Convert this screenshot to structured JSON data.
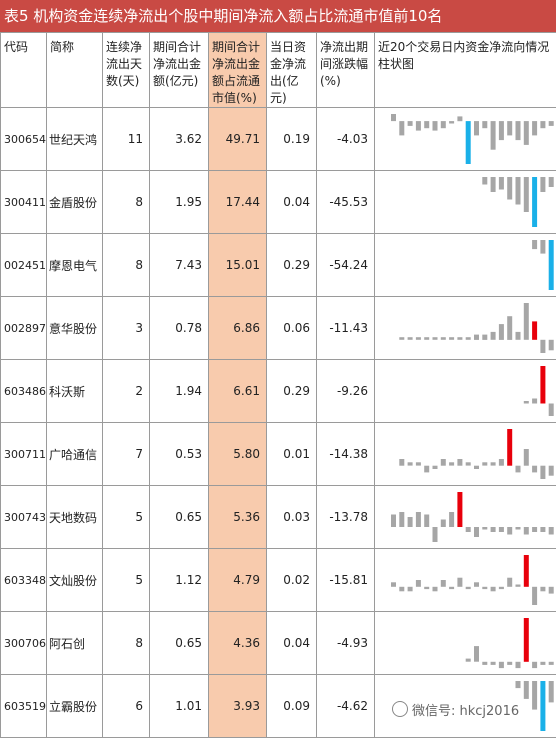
{
  "title": "表5  机构资金连续净流出个股中期间净流入额占比流通市值前10名",
  "headers": [
    "代码",
    "简称",
    "连续净流出天数(天)",
    "期间合计净流出金额(亿元)",
    "期间合计净流出金额占流通市值(%)",
    "当日资金净流出(亿元)",
    "净流出期间涨跌幅(%)",
    "近20个交易日内资金净流向情况柱状图"
  ],
  "rows": [
    {
      "code": "300654",
      "name": "世纪天鸿",
      "days": "11",
      "amount": "3.62",
      "ratio": "49.71",
      "today": "0.19",
      "change": "-4.03"
    },
    {
      "code": "300411",
      "name": "金盾股份",
      "days": "8",
      "amount": "1.95",
      "ratio": "17.44",
      "today": "0.04",
      "change": "-45.53"
    },
    {
      "code": "002451",
      "name": "摩恩电气",
      "days": "8",
      "amount": "7.43",
      "ratio": "15.01",
      "today": "0.29",
      "change": "-54.24"
    },
    {
      "code": "002897",
      "name": "意华股份",
      "days": "3",
      "amount": "0.78",
      "ratio": "6.86",
      "today": "0.06",
      "change": "-11.43"
    },
    {
      "code": "603486",
      "name": "科沃斯",
      "days": "2",
      "amount": "1.94",
      "ratio": "6.61",
      "today": "0.29",
      "change": "-9.26"
    },
    {
      "code": "300711",
      "name": "广哈通信",
      "days": "7",
      "amount": "0.53",
      "ratio": "5.80",
      "today": "0.01",
      "change": "-14.38"
    },
    {
      "code": "300743",
      "name": "天地数码",
      "days": "5",
      "amount": "0.65",
      "ratio": "5.36",
      "today": "0.03",
      "change": "-13.78"
    },
    {
      "code": "603348",
      "name": "文灿股份",
      "days": "5",
      "amount": "1.12",
      "ratio": "4.79",
      "today": "0.02",
      "change": "-15.81"
    },
    {
      "code": "300706",
      "name": "阿石创",
      "days": "8",
      "amount": "0.65",
      "ratio": "4.36",
      "today": "0.04",
      "change": "-4.93"
    },
    {
      "code": "603519",
      "name": "立霸股份",
      "days": "6",
      "amount": "1.01",
      "ratio": "3.93",
      "today": "0.09",
      "change": "-4.62"
    }
  ],
  "sparks": [
    [
      3,
      -6,
      -2,
      -4,
      -3,
      -4,
      -3,
      -1,
      2,
      -18,
      -6,
      -3,
      -12,
      -8,
      -6,
      -8,
      -10,
      -6,
      -3,
      -2
    ],
    [
      0,
      0,
      0,
      0,
      0,
      0,
      0,
      0,
      0,
      0,
      0,
      -3,
      -6,
      -5,
      -9,
      -11,
      -14,
      -20,
      -6,
      -4
    ],
    [
      0,
      0,
      0,
      0,
      0,
      0,
      0,
      0,
      0,
      0,
      0,
      0,
      0,
      0,
      0,
      0,
      0,
      -4,
      -6,
      -22
    ],
    [
      0,
      1,
      1,
      1,
      1,
      1,
      1,
      1,
      1,
      1,
      2,
      2,
      3,
      6,
      9,
      3,
      14,
      7,
      -5,
      -4
    ],
    [
      0,
      0,
      0,
      0,
      0,
      0,
      0,
      0,
      0,
      0,
      0,
      0,
      0,
      0,
      0,
      0,
      1,
      2,
      15,
      -5
    ],
    [
      0,
      2,
      1,
      1,
      -2,
      -1,
      2,
      1,
      2,
      1,
      -1,
      1,
      1,
      2,
      11,
      -2,
      5,
      -2,
      -4,
      -3
    ],
    [
      5,
      6,
      4,
      6,
      5,
      -6,
      3,
      6,
      14,
      -2,
      -4,
      -1,
      -2,
      -2,
      -3,
      -1,
      -3,
      -2,
      -2,
      -3
    ],
    [
      2,
      -2,
      -2,
      3,
      -1,
      -2,
      3,
      -1,
      4,
      -1,
      2,
      -1,
      -2,
      -1,
      4,
      1,
      14,
      -8,
      -2,
      -3
    ],
    [
      0,
      0,
      0,
      0,
      0,
      0,
      0,
      0,
      0,
      1,
      5,
      -1,
      -1,
      -2,
      -1,
      -2,
      14,
      -2,
      -1,
      -1
    ],
    [
      0,
      0,
      0,
      0,
      0,
      0,
      0,
      0,
      0,
      0,
      0,
      0,
      0,
      0,
      0,
      -2,
      -5,
      -8,
      -14,
      -6
    ]
  ],
  "spark_highlight": [
    9,
    17,
    19,
    17,
    18,
    14,
    8,
    16,
    16,
    18
  ],
  "colors": {
    "title_bg": "#c94a44",
    "highlight_cell": "#f8cbad",
    "bar_gray": "#a6a6a6",
    "bar_red": "#e8000b",
    "bar_blue": "#1ab0e8"
  },
  "watermark": "微信号: hkcj2016"
}
